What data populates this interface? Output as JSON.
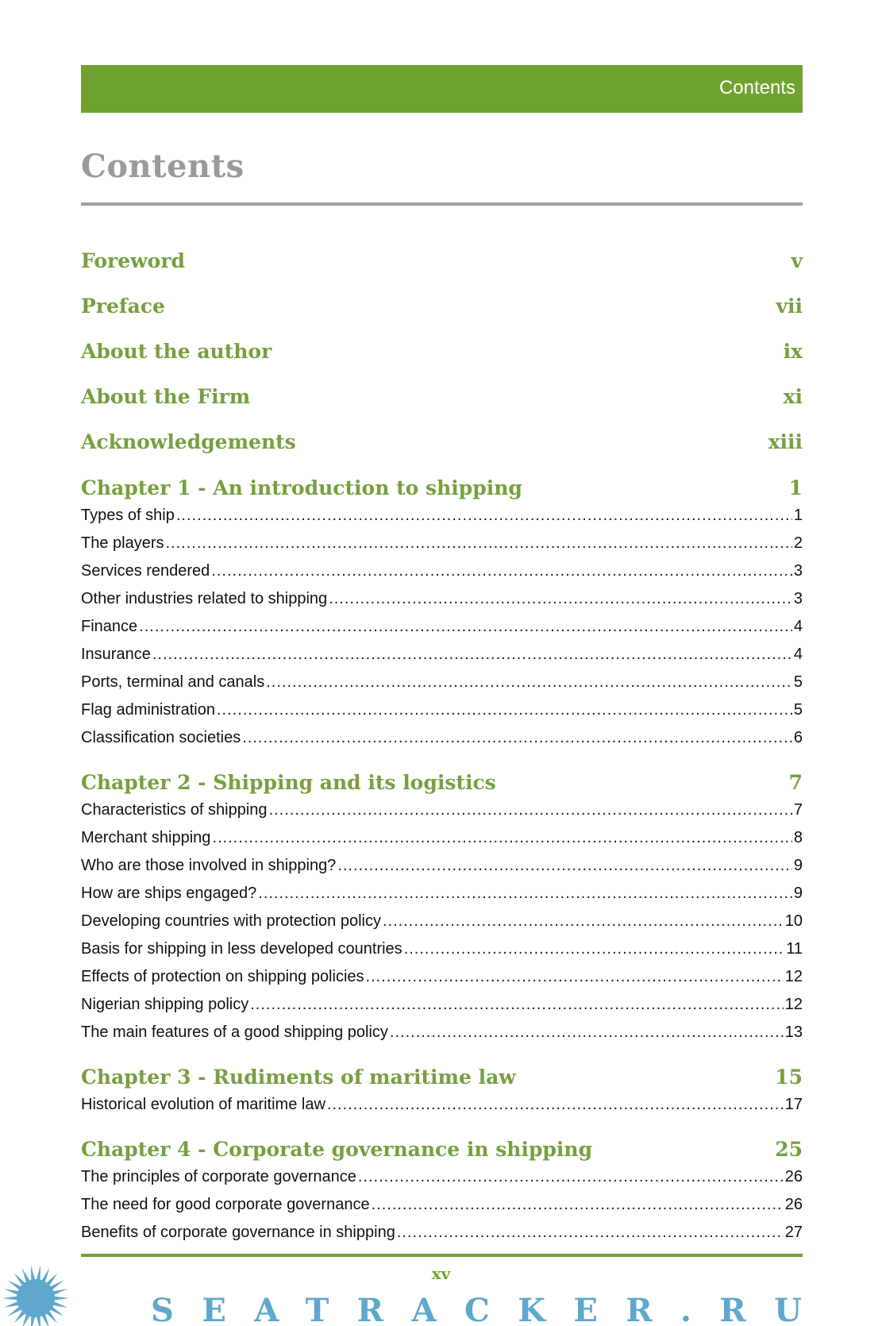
{
  "header": {
    "running_title": "Contents"
  },
  "page_title": "Contents",
  "front_matter": [
    {
      "label": "Foreword",
      "page": "v"
    },
    {
      "label": "Preface",
      "page": "vii"
    },
    {
      "label": "About the author",
      "page": "ix"
    },
    {
      "label": "About the Firm",
      "page": "xi"
    },
    {
      "label": "Acknowledgements",
      "page": "xiii"
    }
  ],
  "chapters": [
    {
      "title": "Chapter 1 - An introduction to shipping",
      "page": "1",
      "entries": [
        {
          "label": "Types of ship",
          "page": "1"
        },
        {
          "label": "The players",
          "page": "2"
        },
        {
          "label": "Services rendered",
          "page": "3"
        },
        {
          "label": "Other industries related to shipping",
          "page": "3"
        },
        {
          "label": "Finance",
          "page": "4"
        },
        {
          "label": "Insurance",
          "page": "4"
        },
        {
          "label": "Ports, terminal and canals",
          "page": "5"
        },
        {
          "label": "Flag administration",
          "page": "5"
        },
        {
          "label": "Classification societies",
          "page": "6"
        }
      ]
    },
    {
      "title": "Chapter 2 - Shipping and its logistics",
      "page": "7",
      "entries": [
        {
          "label": "Characteristics of shipping",
          "page": "7"
        },
        {
          "label": "Merchant shipping",
          "page": "8"
        },
        {
          "label": "Who are those involved in shipping?",
          "page": "9"
        },
        {
          "label": "How are ships engaged?",
          "page": "9"
        },
        {
          "label": "Developing countries with protection policy",
          "page": "10"
        },
        {
          "label": "Basis for shipping in less developed countries",
          "page": "11"
        },
        {
          "label": "Effects of protection on shipping policies",
          "page": "12"
        },
        {
          "label": "Nigerian shipping policy",
          "page": "12"
        },
        {
          "label": "The main features of a good shipping policy",
          "page": "13"
        }
      ]
    },
    {
      "title": "Chapter 3 - Rudiments of maritime law",
      "page": "15",
      "entries": [
        {
          "label": "Historical evolution of maritime law",
          "page": "17"
        }
      ]
    },
    {
      "title": "Chapter 4 - Corporate governance in shipping",
      "page": "25",
      "entries": [
        {
          "label": "The principles of corporate governance",
          "page": "26"
        },
        {
          "label": "The need for good corporate governance",
          "page": "26"
        },
        {
          "label": "Benefits of corporate governance in shipping",
          "page": "27"
        }
      ]
    }
  ],
  "footer": {
    "page_number": "xv"
  },
  "watermark": {
    "text": "SEATRACKER.RU",
    "color": "#5fa8cc"
  },
  "colors": {
    "accent": "#70a22f",
    "heading": "#76a03f",
    "title": "#9a9a9a"
  }
}
